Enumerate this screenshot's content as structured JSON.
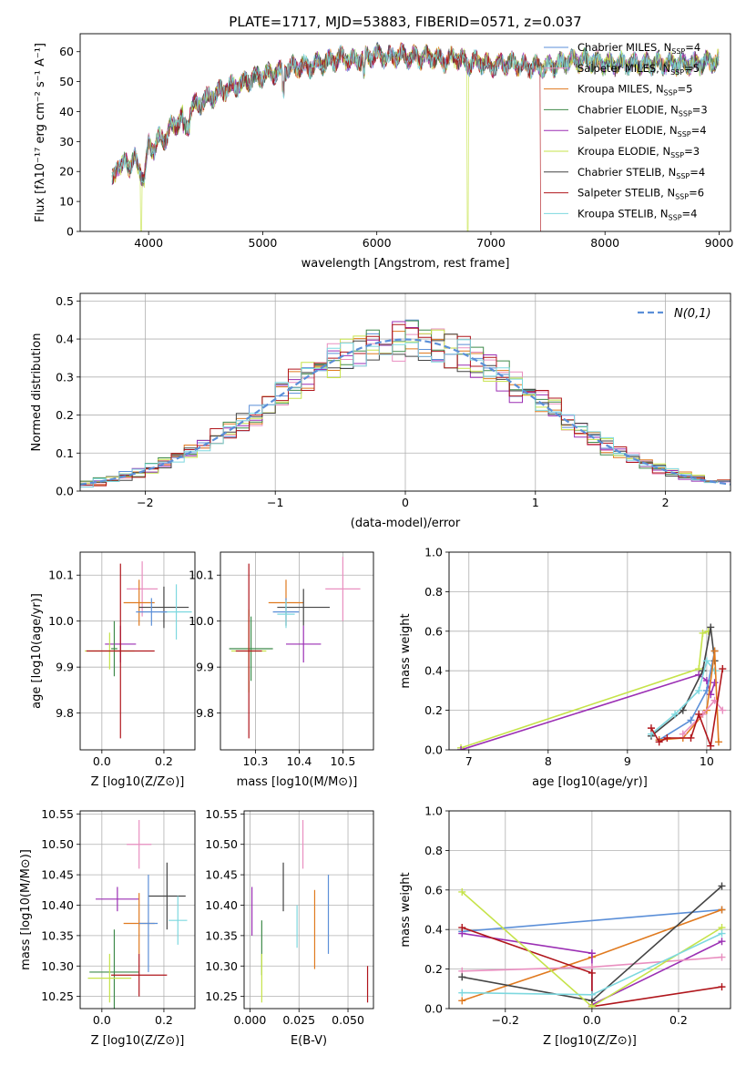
{
  "colors": {
    "chabrier_miles": "#5b8fd8",
    "salpeter_miles": "#e98fc0",
    "kroupa_miles": "#e07a1f",
    "chabrier_elodie": "#3f8a4a",
    "salpeter_elodie": "#9b2fb4",
    "kroupa_elodie": "#c6e34a",
    "chabrier_stelib": "#444444",
    "salpeter_stelib": "#b0161c",
    "kroupa_stelib": "#7dd8df",
    "normal": "#5b8fd8"
  },
  "chart_data": [
    {
      "id": "spectrum",
      "type": "line",
      "title": "PLATE=1717, MJD=53883, FIBERID=0571, z=0.037",
      "xlabel": "wavelength [Angstrom, rest frame]",
      "ylabel": "Flux [fλ10⁻¹⁷ erg cm⁻² s⁻¹ A⁻¹]",
      "xlim": [
        3400,
        9100
      ],
      "ylim": [
        0,
        66
      ],
      "xticks": [
        "4000",
        "5000",
        "6000",
        "7000",
        "8000",
        "9000"
      ],
      "yticks": [
        "0",
        "10",
        "20",
        "30",
        "40",
        "50",
        "60"
      ],
      "x": [
        3680,
        3720,
        3760,
        3800,
        3840,
        3880,
        3920,
        3960,
        4000,
        4050,
        4100,
        4150,
        4200,
        4300,
        4400,
        4500,
        4600,
        4700,
        4800,
        4900,
        5000,
        5100,
        5200,
        5300,
        5400,
        5500,
        5600,
        5700,
        5800,
        5900,
        6000,
        6100,
        6200,
        6300,
        6400,
        6500,
        6600,
        6700,
        6800,
        6900,
        7000,
        7100,
        7200,
        7300,
        7400,
        7500,
        7600,
        7700,
        7800,
        7900,
        8000,
        8200,
        8400,
        8600,
        8800,
        9000
      ],
      "y": [
        18,
        22,
        20,
        25,
        21,
        24,
        22,
        16,
        30,
        27,
        32,
        31,
        35,
        38,
        42,
        44,
        46,
        48,
        49,
        51,
        52,
        53,
        54,
        55,
        55,
        56,
        57,
        58,
        57,
        58,
        59,
        58,
        59,
        58,
        58,
        58,
        57,
        58,
        56,
        57,
        55,
        56,
        56,
        55,
        55,
        55,
        56,
        57,
        57,
        57,
        56,
        56,
        56,
        56,
        56,
        57
      ],
      "legend": [
        {
          "key": "chabrier_miles",
          "label": "Chabrier MILES, N",
          "sub": "SSP",
          "value": "=4"
        },
        {
          "key": "salpeter_miles",
          "label": "Salpeter MILES, N",
          "sub": "SSP",
          "value": "=5"
        },
        {
          "key": "kroupa_miles",
          "label": "Kroupa MILES, N",
          "sub": "SSP",
          "value": "=5"
        },
        {
          "key": "chabrier_elodie",
          "label": "Chabrier ELODIE, N",
          "sub": "SSP",
          "value": "=3"
        },
        {
          "key": "salpeter_elodie",
          "label": "Salpeter ELODIE, N",
          "sub": "SSP",
          "value": "=4"
        },
        {
          "key": "kroupa_elodie",
          "label": "Kroupa ELODIE, N",
          "sub": "SSP",
          "value": "=3"
        },
        {
          "key": "chabrier_stelib",
          "label": "Chabrier STELIB, N",
          "sub": "SSP",
          "value": "=4"
        },
        {
          "key": "salpeter_stelib",
          "label": "Salpeter STELIB, N",
          "sub": "SSP",
          "value": "=6"
        },
        {
          "key": "kroupa_stelib",
          "label": "Kroupa STELIB, N",
          "sub": "SSP",
          "value": "=4"
        }
      ]
    },
    {
      "id": "residuals",
      "type": "histogram",
      "xlabel": "(data-model)/error",
      "ylabel": "Normed distribution",
      "xlim": [
        -2.5,
        2.5
      ],
      "ylim": [
        0,
        0.52
      ],
      "xticks": [
        "-2",
        "-1",
        "0",
        "1",
        "2"
      ],
      "yticks": [
        "0.0",
        "0.1",
        "0.2",
        "0.3",
        "0.4",
        "0.5"
      ],
      "legend": "N(0,1)",
      "legend_position": "top-right",
      "grid": true
    },
    {
      "id": "age_vs_z",
      "type": "scatter",
      "xlabel": "Z [log10(Z/Z⊙)]",
      "ylabel": "age  [log10(age/yr)]",
      "xlim": [
        -0.07,
        0.3
      ],
      "ylim": [
        9.72,
        10.15
      ],
      "xticks": [
        "0.0",
        "0.2"
      ],
      "yticks": [
        "9.8",
        "9.9",
        "10.0",
        "10.1"
      ],
      "points": [
        {
          "key": "salpeter_miles",
          "x": 0.13,
          "y": 10.07,
          "ex": 0.05,
          "ey": 0.06
        },
        {
          "key": "kroupa_miles",
          "x": 0.12,
          "y": 10.04,
          "ex": 0.05,
          "ey": 0.05
        },
        {
          "key": "chabrier_stelib",
          "x": 0.2,
          "y": 10.03,
          "ex": 0.08,
          "ey": 0.045
        },
        {
          "key": "kroupa_stelib",
          "x": 0.24,
          "y": 10.02,
          "ex": 0.05,
          "ey": 0.06
        },
        {
          "key": "chabrier_miles",
          "x": 0.16,
          "y": 10.02,
          "ex": 0.05,
          "ey": 0.03
        },
        {
          "key": "salpeter_elodie",
          "x": 0.06,
          "y": 9.95,
          "ex": 0.05,
          "ey": 0.04
        },
        {
          "key": "chabrier_elodie",
          "x": 0.04,
          "y": 9.94,
          "ex": 0.01,
          "ey": 0.06
        },
        {
          "key": "kroupa_elodie",
          "x": 0.025,
          "y": 9.935,
          "ex": 0.08,
          "ey": 0.04
        },
        {
          "key": "salpeter_stelib",
          "x": 0.06,
          "y": 9.935,
          "ex": 0.11,
          "ey": 0.19
        }
      ]
    },
    {
      "id": "age_vs_mass",
      "type": "scatter",
      "xlabel": "mass [log10(M/M⊙)]",
      "xlim": [
        10.22,
        10.57
      ],
      "ylim": [
        9.72,
        10.15
      ],
      "xticks": [
        "10.3",
        "10.4",
        "10.5"
      ],
      "yticks": [
        "9.8",
        "9.9",
        "10.0",
        "10.1"
      ],
      "points": [
        {
          "key": "salpeter_miles",
          "x": 10.5,
          "y": 10.07,
          "ex": 0.04,
          "ey": 0.07
        },
        {
          "key": "kroupa_miles",
          "x": 10.37,
          "y": 10.04,
          "ex": 0.04,
          "ey": 0.05
        },
        {
          "key": "chabrier_stelib",
          "x": 10.41,
          "y": 10.03,
          "ex": 0.06,
          "ey": 0.04
        },
        {
          "key": "chabrier_miles",
          "x": 10.37,
          "y": 10.02,
          "ex": 0.03,
          "ey": 0.03
        },
        {
          "key": "kroupa_stelib",
          "x": 10.37,
          "y": 10.015,
          "ex": 0.02,
          "ey": 0.03
        },
        {
          "key": "salpeter_elodie",
          "x": 10.41,
          "y": 9.95,
          "ex": 0.04,
          "ey": 0.04
        },
        {
          "key": "chabrier_elodie",
          "x": 10.29,
          "y": 9.94,
          "ex": 0.05,
          "ey": 0.07
        },
        {
          "key": "kroupa_elodie",
          "x": 10.285,
          "y": 9.935,
          "ex": 0.04,
          "ey": 0.09
        },
        {
          "key": "salpeter_stelib",
          "x": 10.285,
          "y": 9.935,
          "ex": 0.03,
          "ey": 0.19
        }
      ]
    },
    {
      "id": "mass_weight_vs_age",
      "type": "line",
      "xlabel": "age  [log10(age/yr)]",
      "ylabel": "mass weight",
      "xlim": [
        6.75,
        10.3
      ],
      "ylim": [
        0,
        1
      ],
      "xticks": [
        "7",
        "8",
        "9",
        "10"
      ],
      "yticks": [
        "0.0",
        "0.2",
        "0.4",
        "0.6",
        "0.8",
        "1.0"
      ],
      "series": [
        {
          "key": "kroupa_elodie",
          "x": [
            6.9,
            9.9,
            9.95,
            10.02
          ],
          "y": [
            0.01,
            0.41,
            0.59,
            0.6
          ]
        },
        {
          "key": "salpeter_elodie",
          "x": [
            6.9,
            9.9,
            10.0,
            10.05,
            10.1
          ],
          "y": [
            0.0,
            0.38,
            0.35,
            0.28,
            0.34
          ]
        },
        {
          "key": "chabrier_stelib",
          "x": [
            9.3,
            9.7,
            9.95,
            10.05,
            10.1
          ],
          "y": [
            0.07,
            0.2,
            0.4,
            0.62,
            0.45
          ]
        },
        {
          "key": "kroupa_stelib",
          "x": [
            9.3,
            9.6,
            9.9,
            10.0,
            10.1
          ],
          "y": [
            0.08,
            0.18,
            0.3,
            0.45,
            0.4
          ]
        },
        {
          "key": "chabrier_miles",
          "x": [
            9.4,
            9.8,
            10.0,
            10.1
          ],
          "y": [
            0.05,
            0.15,
            0.3,
            0.5
          ]
        },
        {
          "key": "kroupa_miles",
          "x": [
            9.4,
            9.7,
            10.0,
            10.1,
            10.15
          ],
          "y": [
            0.05,
            0.06,
            0.2,
            0.5,
            0.04
          ]
        },
        {
          "key": "salpeter_miles",
          "x": [
            9.7,
            9.95,
            10.1,
            10.2
          ],
          "y": [
            0.08,
            0.18,
            0.25,
            0.2
          ]
        },
        {
          "key": "salpeter_stelib",
          "x": [
            9.3,
            9.4,
            9.5,
            9.8,
            9.9,
            10.05,
            10.2
          ],
          "y": [
            0.11,
            0.04,
            0.06,
            0.06,
            0.18,
            0.02,
            0.41
          ]
        }
      ]
    },
    {
      "id": "mass_vs_z",
      "type": "scatter",
      "xlabel": "Z [log10(Z/Z⊙)]",
      "ylabel": "mass [log10(M/M⊙)]",
      "xlim": [
        -0.07,
        0.3
      ],
      "ylim": [
        10.23,
        10.555
      ],
      "xticks": [
        "0.0",
        "0.2"
      ],
      "yticks": [
        "10.25",
        "10.30",
        "10.35",
        "10.40",
        "10.45",
        "10.50",
        "10.55"
      ],
      "points": [
        {
          "key": "salpeter_miles",
          "x": 0.12,
          "y": 10.5,
          "ex": 0.04,
          "ey": 0.04
        },
        {
          "key": "chabrier_stelib",
          "x": 0.21,
          "y": 10.415,
          "ex": 0.06,
          "ey": 0.055
        },
        {
          "key": "salpeter_elodie",
          "x": 0.05,
          "y": 10.41,
          "ex": 0.07,
          "ey": 0.02
        },
        {
          "key": "kroupa_stelib",
          "x": 0.245,
          "y": 10.375,
          "ex": 0.03,
          "ey": 0.04
        },
        {
          "key": "kroupa_miles",
          "x": 0.12,
          "y": 10.37,
          "ex": 0.05,
          "ey": 0.05
        },
        {
          "key": "chabrier_miles",
          "x": 0.15,
          "y": 10.37,
          "ex": 0.03,
          "ey": 0.08
        },
        {
          "key": "chabrier_elodie",
          "x": 0.04,
          "y": 10.29,
          "ex": 0.08,
          "ey": 0.07
        },
        {
          "key": "kroupa_elodie",
          "x": 0.025,
          "y": 10.28,
          "ex": 0.07,
          "ey": 0.04
        },
        {
          "key": "salpeter_stelib",
          "x": 0.12,
          "y": 10.285,
          "ex": 0.09,
          "ey": 0.035
        }
      ]
    },
    {
      "id": "mass_vs_ebv",
      "type": "scatter",
      "xlabel": "E(B-V)",
      "xlim": [
        -0.003,
        0.063
      ],
      "ylim": [
        10.23,
        10.555
      ],
      "xticks": [
        "0.000",
        "0.025",
        "0.050"
      ],
      "yticks": [
        "10.25",
        "10.30",
        "10.35",
        "10.40",
        "10.45",
        "10.50",
        "10.55"
      ],
      "points": [
        {
          "key": "salpeter_miles",
          "x": 0.027,
          "y": 10.5,
          "ex": 0,
          "ey": 0.04
        },
        {
          "key": "chabrier_stelib",
          "x": 0.017,
          "y": 10.43,
          "ex": 0,
          "ey": 0.04
        },
        {
          "key": "salpeter_elodie",
          "x": 0.001,
          "y": 10.39,
          "ex": 0,
          "ey": 0.04
        },
        {
          "key": "chabrier_miles",
          "x": 0.04,
          "y": 10.385,
          "ex": 0,
          "ey": 0.065
        },
        {
          "key": "kroupa_miles",
          "x": 0.033,
          "y": 10.36,
          "ex": 0,
          "ey": 0.065
        },
        {
          "key": "kroupa_stelib",
          "x": 0.024,
          "y": 10.365,
          "ex": 0,
          "ey": 0.035
        },
        {
          "key": "chabrier_elodie",
          "x": 0.006,
          "y": 10.33,
          "ex": 0,
          "ey": 0.045
        },
        {
          "key": "kroupa_elodie",
          "x": 0.006,
          "y": 10.28,
          "ex": 0,
          "ey": 0.04
        },
        {
          "key": "salpeter_stelib",
          "x": 0.06,
          "y": 10.27,
          "ex": 0,
          "ey": 0.03
        }
      ]
    },
    {
      "id": "mass_weight_vs_z",
      "type": "line",
      "xlabel": "Z [log10(Z/Z⊙)]",
      "ylabel": "mass weight",
      "xlim": [
        -0.33,
        0.32
      ],
      "ylim": [
        0,
        1
      ],
      "xticks": [
        "-0.2",
        "0.0",
        "0.2"
      ],
      "yticks": [
        "0.0",
        "0.2",
        "0.4",
        "0.6",
        "0.8",
        "1.0"
      ],
      "series": [
        {
          "key": "chabrier_miles",
          "x": [
            -0.3,
            0.3
          ],
          "y": [
            0.39,
            0.5
          ]
        },
        {
          "key": "kroupa_miles",
          "x": [
            -0.3,
            0.0,
            0.3
          ],
          "y": [
            0.04,
            0.26,
            0.5
          ]
        },
        {
          "key": "salpeter_elodie",
          "x": [
            -0.3,
            0.0,
            0.0,
            0.3
          ],
          "y": [
            0.38,
            0.28,
            0.02,
            0.34
          ]
        },
        {
          "key": "salpeter_miles",
          "x": [
            -0.3,
            0.0,
            0.3
          ],
          "y": [
            0.19,
            0.21,
            0.26
          ]
        },
        {
          "key": "salpeter_stelib",
          "x": [
            -0.3,
            0.0,
            0.0,
            0.3
          ],
          "y": [
            0.41,
            0.18,
            0.01,
            0.11
          ]
        },
        {
          "key": "chabrier_stelib",
          "x": [
            -0.3,
            0.0,
            0.3
          ],
          "y": [
            0.16,
            0.04,
            0.62
          ]
        },
        {
          "key": "kroupa_elodie",
          "x": [
            -0.3,
            0.0,
            0.3
          ],
          "y": [
            0.59,
            0.01,
            0.41
          ]
        },
        {
          "key": "kroupa_stelib",
          "x": [
            -0.3,
            0.0,
            0.3
          ],
          "y": [
            0.08,
            0.07,
            0.38
          ]
        }
      ]
    }
  ]
}
